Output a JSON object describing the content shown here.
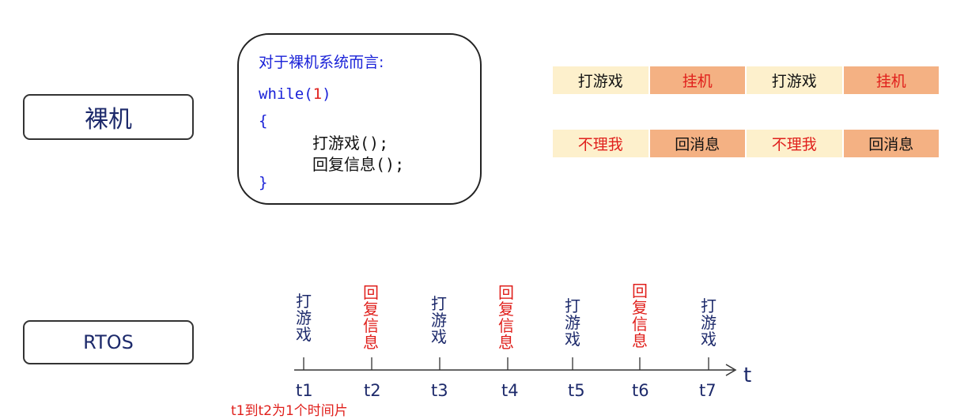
{
  "bare_metal": {
    "label": "裸机",
    "code": {
      "heading": "对于裸机系统而言:",
      "while_kw": "while(",
      "while_num": "1",
      "while_close": ")",
      "open_brace": "{",
      "line1_text": "打游戏",
      "line1_suffix": "();",
      "line2_text": "回复信息",
      "line2_suffix": "();",
      "close_brace": "}"
    },
    "sequence_row_1": [
      "打游戏",
      "挂机",
      "打游戏",
      "挂机"
    ],
    "sequence_row_2": [
      "不理我",
      "回消息",
      "不理我",
      "回消息"
    ]
  },
  "rtos": {
    "label": "RTOS",
    "tasks": [
      "打游戏",
      "回复信息",
      "打游戏",
      "回复信息",
      "打游戏",
      "回复信息",
      "打游戏"
    ],
    "ticks": [
      "t1",
      "t2",
      "t3",
      "t4",
      "t5",
      "t6",
      "t7"
    ],
    "axis_label": "t",
    "note": "t1到t2为1个时间片"
  },
  "colors": {
    "navy_text": "#1d2a6b",
    "code_blue": "#1a22d8",
    "red": "#e0201c",
    "segment_light": "#fdf0cc",
    "segment_dark": "#f4b183"
  }
}
